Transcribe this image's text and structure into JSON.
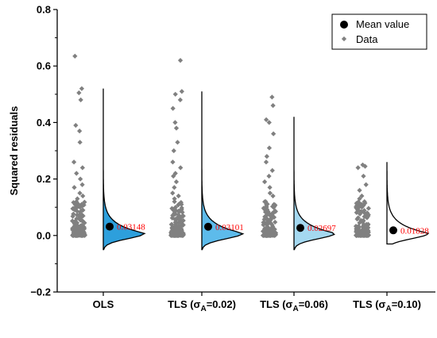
{
  "colors": {
    "accent_label": "#ff0000",
    "data_point": "#808080",
    "mean_point": "#000000",
    "violin_fills": [
      "#2d9fdc",
      "#5dbbeb",
      "#a4d8f0",
      "#ffffff"
    ]
  },
  "chart_data": {
    "type": "scatter",
    "ylabel": "Squared residuals",
    "xlabel": "",
    "ylim": [
      -0.2,
      0.8
    ],
    "yticks": [
      "−0.2",
      "0.0",
      "0.2",
      "0.4",
      "0.6",
      "0.8"
    ],
    "categories": [
      "OLS",
      "TLS (σA=0.02)",
      "TLS (σA=0.06)",
      "TLS (σA=0.10)"
    ],
    "category_display": [
      {
        "main": "OLS",
        "sub": ""
      },
      {
        "main": "TLS (σ",
        "sub": "A",
        "tail": "=0.02)"
      },
      {
        "main": "TLS (σ",
        "sub": "A",
        "tail": "=0.06)"
      },
      {
        "main": "TLS (σ",
        "sub": "A",
        "tail": "=0.10)"
      }
    ],
    "mean_values": [
      0.03148,
      0.03101,
      0.02697,
      0.01828
    ],
    "mean_labels": [
      "0.03148",
      "0.03101",
      "0.02697",
      "0.01828"
    ],
    "violin_max": [
      0.52,
      0.51,
      0.42,
      0.26
    ],
    "violin_min": [
      -0.05,
      -0.05,
      -0.05,
      -0.03
    ],
    "series": [
      {
        "name": "Mean value",
        "values": [
          0.03148,
          0.03101,
          0.02697,
          0.01828
        ]
      },
      {
        "name": "Data",
        "outliers": [
          [
            0.635,
            0.52,
            0.505,
            0.48,
            0.39,
            0.37,
            0.33,
            0.26,
            0.24,
            0.22,
            0.2,
            0.18,
            0.17,
            0.15,
            0.14,
            0.13,
            0.12,
            0.11,
            0.1
          ],
          [
            0.62,
            0.51,
            0.5,
            0.48,
            0.45,
            0.4,
            0.38,
            0.33,
            0.3,
            0.26,
            0.24,
            0.22,
            0.21,
            0.19,
            0.17,
            0.15,
            0.14,
            0.13,
            0.12,
            0.11
          ],
          [
            0.49,
            0.46,
            0.41,
            0.4,
            0.36,
            0.31,
            0.28,
            0.26,
            0.23,
            0.21,
            0.19,
            0.17,
            0.15,
            0.14,
            0.12,
            0.11,
            0.1
          ],
          [
            0.25,
            0.245,
            0.24,
            0.21,
            0.18,
            0.16,
            0.14,
            0.13,
            0.12,
            0.11,
            0.1,
            0.09
          ]
        ]
      }
    ],
    "legend": {
      "position": "top-right",
      "entries": [
        "Mean value",
        "Data"
      ]
    },
    "grid": false
  }
}
